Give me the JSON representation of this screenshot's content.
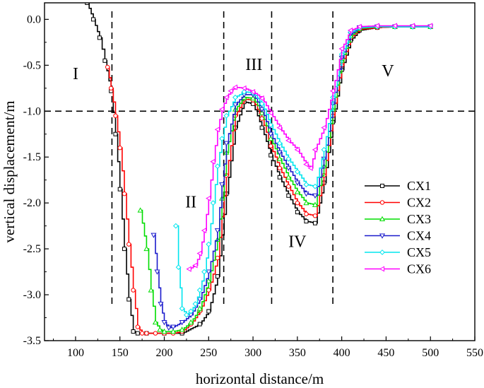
{
  "chart_data": {
    "type": "line",
    "title": "",
    "xlabel": "horizontal distance/m",
    "ylabel": "vertical displacement/m",
    "xlim": [
      65,
      550
    ],
    "ylim": [
      -3.5,
      0.18
    ],
    "xticks": [
      100,
      150,
      200,
      250,
      300,
      350,
      400,
      450,
      500,
      550
    ],
    "yticks": [
      0.0,
      -0.5,
      -1.0,
      -1.5,
      -2.0,
      -2.5,
      -3.0,
      -3.5
    ],
    "xtick_labels": [
      "100",
      "150",
      "200",
      "250",
      "300",
      "350",
      "400",
      "450",
      "500",
      "550"
    ],
    "ytick_labels": [
      "0.0",
      "-0.5",
      "-1.0",
      "-1.5",
      "-2.0",
      "-2.5",
      "-3.0",
      "-3.5"
    ],
    "reference_lines": {
      "horizontal_y": -1.0,
      "vertical_x": [
        141,
        267,
        321,
        390
      ]
    },
    "regions": [
      {
        "label": "I",
        "x": 100,
        "y": -0.65
      },
      {
        "label": "II",
        "x": 230,
        "y": -2.05
      },
      {
        "label": "III",
        "x": 301,
        "y": -0.55
      },
      {
        "label": "IV",
        "x": 350,
        "y": -2.48
      },
      {
        "label": "V",
        "x": 452,
        "y": -0.62
      }
    ],
    "legend_position": "right-middle",
    "series": [
      {
        "name": "CX1",
        "color": "#000000",
        "marker": "square",
        "x": [
          113,
          120,
          127,
          133,
          140,
          145,
          150,
          155,
          160,
          165,
          170,
          180,
          200,
          220,
          240,
          250,
          260,
          270,
          280,
          290,
          300,
          310,
          320,
          330,
          340,
          350,
          360,
          370,
          380,
          390,
          400,
          410,
          420,
          440,
          460,
          480,
          500
        ],
        "y": [
          0.18,
          0.0,
          -0.2,
          -0.45,
          -0.78,
          -1.25,
          -1.85,
          -2.5,
          -3.05,
          -3.4,
          -3.42,
          -3.42,
          -3.42,
          -3.42,
          -3.32,
          -3.18,
          -2.8,
          -1.9,
          -1.18,
          -0.9,
          -0.92,
          -1.18,
          -1.48,
          -1.72,
          -1.92,
          -2.1,
          -2.2,
          -2.22,
          -1.78,
          -1.12,
          -0.55,
          -0.23,
          -0.12,
          -0.09,
          -0.08,
          -0.08,
          -0.08
        ]
      },
      {
        "name": "CX2",
        "color": "#ff0000",
        "marker": "circle",
        "x": [
          136,
          140,
          145,
          150,
          155,
          160,
          165,
          170,
          175,
          180,
          190,
          200,
          210,
          220,
          230,
          240,
          250,
          260,
          270,
          280,
          290,
          300,
          310,
          320,
          330,
          340,
          350,
          360,
          370,
          380,
          390,
          400,
          410,
          420,
          440,
          460,
          480,
          500
        ],
        "y": [
          -0.52,
          -0.75,
          -1.05,
          -1.4,
          -1.9,
          -2.45,
          -2.95,
          -3.35,
          -3.42,
          -3.42,
          -3.42,
          -3.42,
          -3.42,
          -3.4,
          -3.32,
          -3.18,
          -2.95,
          -2.6,
          -1.7,
          -1.05,
          -0.87,
          -0.88,
          -1.08,
          -1.38,
          -1.62,
          -1.82,
          -2.0,
          -2.12,
          -2.14,
          -1.7,
          -1.05,
          -0.5,
          -0.2,
          -0.11,
          -0.09,
          -0.08,
          -0.08,
          -0.08
        ]
      },
      {
        "name": "CX3",
        "color": "#00dd00",
        "marker": "triangle-up",
        "x": [
          173,
          180,
          185,
          190,
          195,
          200,
          210,
          220,
          230,
          240,
          250,
          260,
          265,
          270,
          280,
          290,
          300,
          310,
          320,
          330,
          340,
          350,
          360,
          370,
          380,
          390,
          400,
          410,
          420,
          440,
          460,
          480,
          500
        ],
        "y": [
          -2.08,
          -2.5,
          -2.95,
          -3.3,
          -3.38,
          -3.4,
          -3.4,
          -3.38,
          -3.3,
          -3.15,
          -2.85,
          -2.4,
          -1.95,
          -1.45,
          -0.98,
          -0.85,
          -0.86,
          -1.02,
          -1.3,
          -1.52,
          -1.72,
          -1.88,
          -2.0,
          -2.02,
          -1.6,
          -0.98,
          -0.45,
          -0.18,
          -0.1,
          -0.08,
          -0.08,
          -0.08,
          -0.08
        ]
      },
      {
        "name": "CX4",
        "color": "#1a1acc",
        "marker": "triangle-down",
        "x": [
          188,
          192,
          196,
          200,
          205,
          210,
          220,
          230,
          240,
          250,
          260,
          265,
          270,
          280,
          290,
          300,
          310,
          320,
          330,
          340,
          350,
          360,
          370,
          380,
          390,
          400,
          410,
          420,
          440,
          460,
          480,
          500
        ],
        "y": [
          -2.35,
          -2.75,
          -3.1,
          -3.3,
          -3.36,
          -3.35,
          -3.3,
          -3.22,
          -3.05,
          -2.75,
          -2.3,
          -1.8,
          -1.35,
          -0.93,
          -0.82,
          -0.82,
          -0.98,
          -1.25,
          -1.45,
          -1.62,
          -1.78,
          -1.9,
          -1.92,
          -1.52,
          -0.92,
          -0.42,
          -0.16,
          -0.09,
          -0.08,
          -0.08,
          -0.08,
          -0.08
        ]
      },
      {
        "name": "CX5",
        "color": "#00e5ee",
        "marker": "diamond",
        "x": [
          213,
          216,
          220,
          225,
          230,
          235,
          240,
          245,
          250,
          255,
          260,
          265,
          270,
          280,
          290,
          300,
          310,
          320,
          330,
          340,
          350,
          360,
          370,
          380,
          390,
          400,
          410,
          420,
          440,
          460,
          480,
          500
        ],
        "y": [
          -2.25,
          -2.7,
          -3.15,
          -3.22,
          -3.18,
          -3.1,
          -2.95,
          -2.75,
          -2.45,
          -2.0,
          -1.6,
          -1.3,
          -1.05,
          -0.85,
          -0.79,
          -0.8,
          -0.92,
          -1.15,
          -1.35,
          -1.52,
          -1.66,
          -1.8,
          -1.82,
          -1.42,
          -0.85,
          -0.38,
          -0.14,
          -0.09,
          -0.08,
          -0.08,
          -0.08,
          -0.08
        ]
      },
      {
        "name": "CX6",
        "color": "#ff00ff",
        "marker": "triangle-left",
        "x": [
          228,
          235,
          240,
          245,
          250,
          255,
          260,
          265,
          270,
          275,
          280,
          290,
          300,
          310,
          320,
          330,
          340,
          350,
          360,
          365,
          370,
          380,
          390,
          400,
          410,
          420,
          440,
          460,
          480,
          500
        ],
        "y": [
          -2.72,
          -2.68,
          -2.55,
          -2.3,
          -1.95,
          -1.55,
          -1.2,
          -0.98,
          -0.85,
          -0.78,
          -0.74,
          -0.75,
          -0.79,
          -0.86,
          -1.02,
          -1.18,
          -1.32,
          -1.42,
          -1.58,
          -1.62,
          -1.42,
          -1.18,
          -0.78,
          -0.32,
          -0.12,
          -0.08,
          -0.07,
          -0.07,
          -0.07,
          -0.07
        ]
      }
    ]
  }
}
